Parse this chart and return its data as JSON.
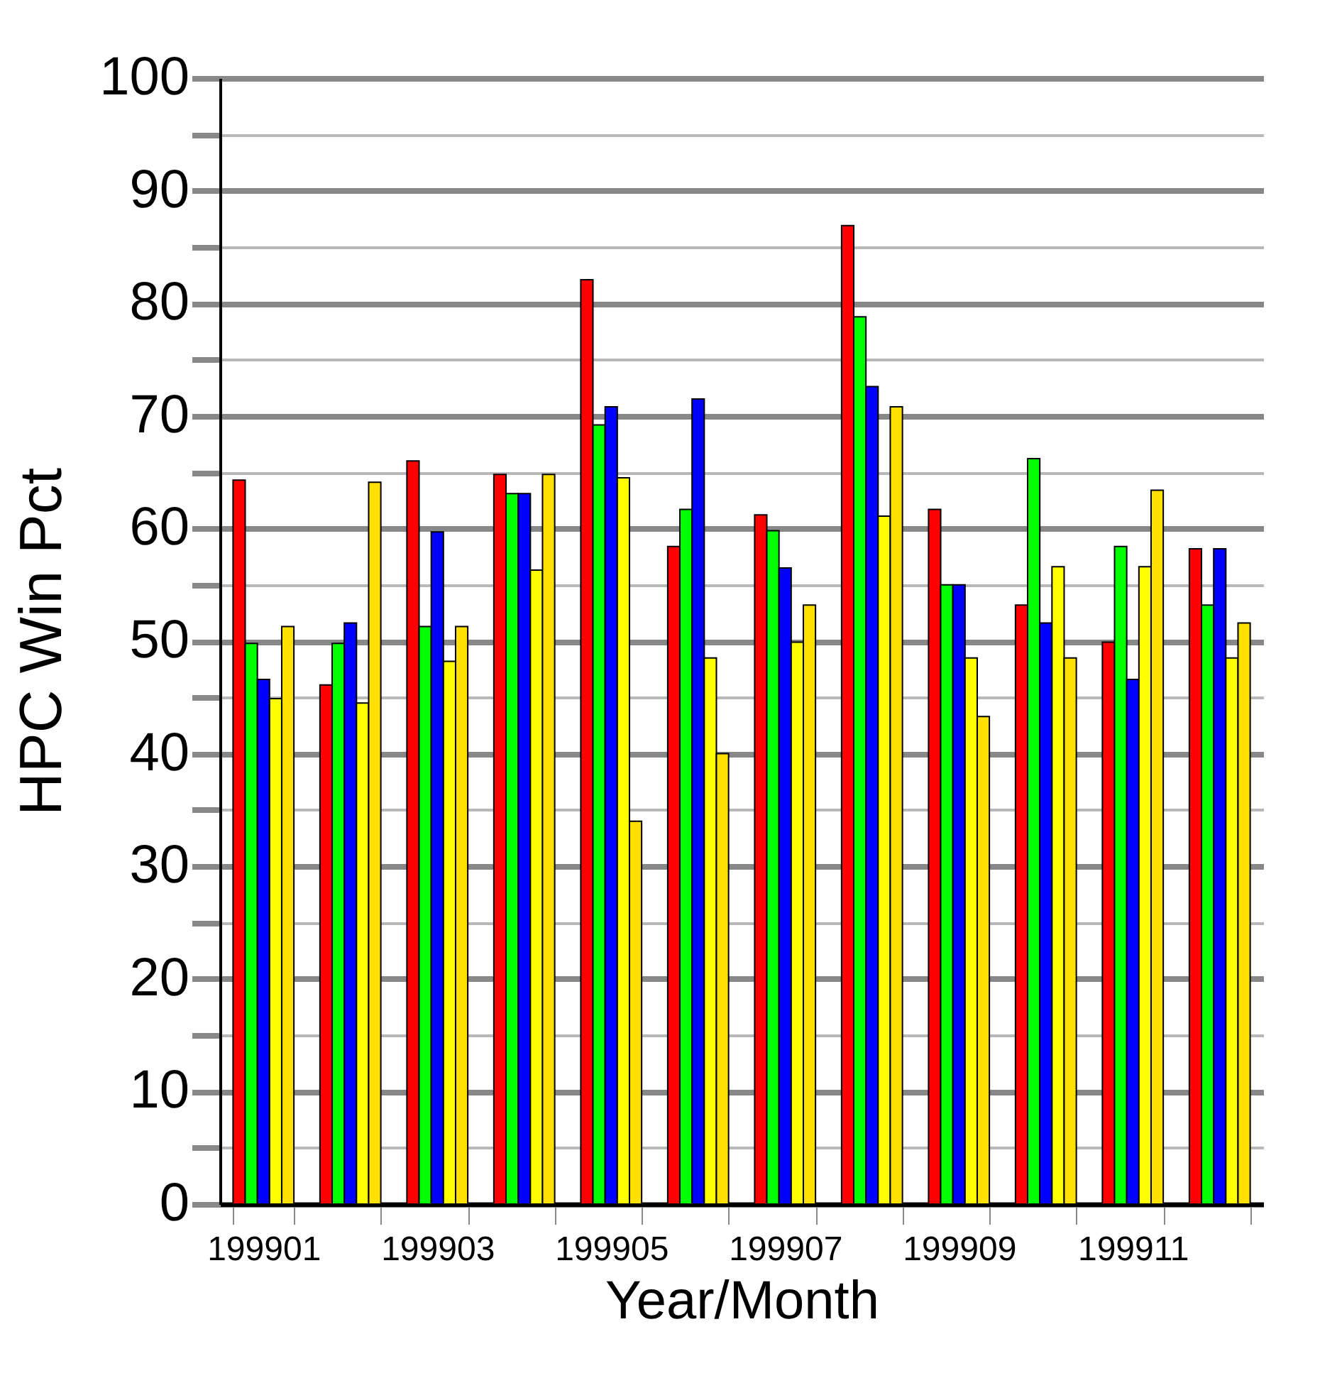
{
  "chart_data": {
    "type": "bar",
    "xlabel": "Year/Month",
    "ylabel": "HPC Win Pct",
    "categories": [
      "199901",
      null,
      "199903",
      null,
      "199905",
      null,
      "199907",
      null,
      "199909",
      null,
      "199911",
      null
    ],
    "series": [
      {
        "color": "#ff0000",
        "values": [
          64.3,
          46.1,
          66.0,
          64.8,
          82.1,
          58.4,
          61.2,
          86.9,
          61.7,
          53.2,
          49.9,
          58.2
        ]
      },
      {
        "color": "#00ff00",
        "values": [
          49.8,
          49.8,
          51.3,
          63.1,
          69.2,
          61.7,
          59.8,
          78.8,
          55.0,
          66.2,
          58.4,
          53.2
        ]
      },
      {
        "color": "#0000ff",
        "values": [
          46.6,
          51.6,
          59.7,
          63.1,
          70.8,
          71.5,
          56.5,
          72.6,
          55.0,
          51.6,
          46.6,
          58.2
        ]
      },
      {
        "color": "#ffff00",
        "values": [
          44.9,
          44.5,
          48.2,
          56.3,
          64.5,
          48.5,
          49.9,
          61.1,
          48.5,
          56.6,
          56.6,
          48.5
        ]
      },
      {
        "color": "#ffe000",
        "values": [
          51.3,
          64.1,
          51.3,
          64.8,
          34.0,
          40.0,
          53.2,
          70.8,
          43.3,
          48.5,
          63.4,
          51.6
        ]
      }
    ],
    "ylim": [
      0,
      100
    ],
    "yticks": [
      0,
      {
        "value": 5,
        "label": null
      },
      10,
      {
        "value": 15,
        "label": null
      },
      20,
      {
        "value": 25,
        "label": null
      },
      30,
      {
        "value": 35,
        "label": null
      },
      40,
      {
        "value": 45,
        "label": null
      },
      50,
      {
        "value": 55,
        "label": null
      },
      60,
      {
        "value": 65,
        "label": null
      },
      70,
      {
        "value": 75,
        "label": null
      },
      80,
      {
        "value": 85,
        "label": null
      },
      90,
      {
        "value": 95,
        "label": null
      },
      100
    ],
    "grid": "y"
  }
}
